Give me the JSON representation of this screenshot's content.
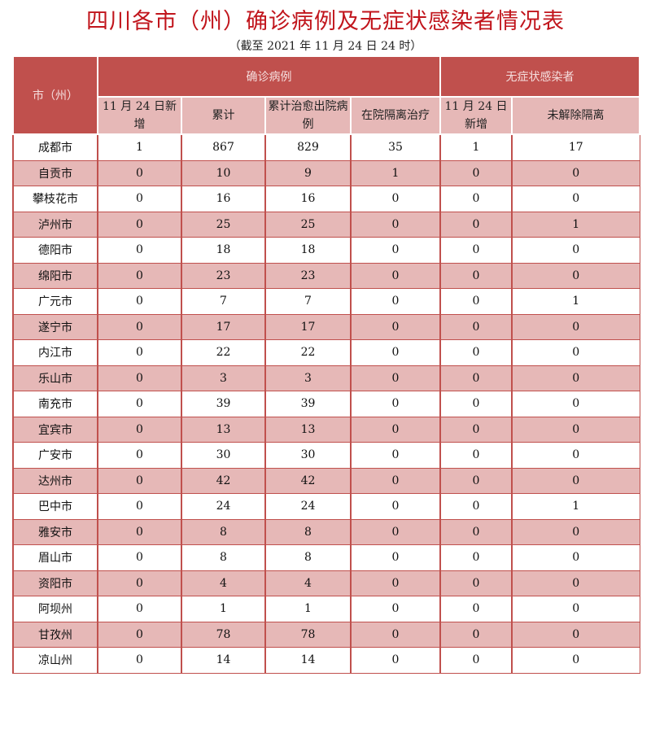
{
  "title": "四川各市（州）确诊病例及无症状感染者情况表",
  "subtitle": "（截至 2021 年 11 月 24 日 24 时）",
  "header": {
    "city": "市（州）",
    "confirmed_group": "确诊病例",
    "asymptomatic_group": "无症状感染者",
    "columns": [
      "11 月 24 日新增",
      "累计",
      "累计治愈出院病例",
      "在院隔离治疗",
      "11 月 24 日新增",
      "未解除隔离"
    ]
  },
  "rows": [
    [
      "成都市",
      "1",
      "867",
      "829",
      "35",
      "1",
      "17"
    ],
    [
      "自贡市",
      "0",
      "10",
      "9",
      "1",
      "0",
      "0"
    ],
    [
      "攀枝花市",
      "0",
      "16",
      "16",
      "0",
      "0",
      "0"
    ],
    [
      "泸州市",
      "0",
      "25",
      "25",
      "0",
      "0",
      "1"
    ],
    [
      "德阳市",
      "0",
      "18",
      "18",
      "0",
      "0",
      "0"
    ],
    [
      "绵阳市",
      "0",
      "23",
      "23",
      "0",
      "0",
      "0"
    ],
    [
      "广元市",
      "0",
      "7",
      "7",
      "0",
      "0",
      "1"
    ],
    [
      "遂宁市",
      "0",
      "17",
      "17",
      "0",
      "0",
      "0"
    ],
    [
      "内江市",
      "0",
      "22",
      "22",
      "0",
      "0",
      "0"
    ],
    [
      "乐山市",
      "0",
      "3",
      "3",
      "0",
      "0",
      "0"
    ],
    [
      "南充市",
      "0",
      "39",
      "39",
      "0",
      "0",
      "0"
    ],
    [
      "宜宾市",
      "0",
      "13",
      "13",
      "0",
      "0",
      "0"
    ],
    [
      "广安市",
      "0",
      "30",
      "30",
      "0",
      "0",
      "0"
    ],
    [
      "达州市",
      "0",
      "42",
      "42",
      "0",
      "0",
      "0"
    ],
    [
      "巴中市",
      "0",
      "24",
      "24",
      "0",
      "0",
      "1"
    ],
    [
      "雅安市",
      "0",
      "8",
      "8",
      "0",
      "0",
      "0"
    ],
    [
      "眉山市",
      "0",
      "8",
      "8",
      "0",
      "0",
      "0"
    ],
    [
      "资阳市",
      "0",
      "4",
      "4",
      "0",
      "0",
      "0"
    ],
    [
      "阿坝州",
      "0",
      "1",
      "1",
      "0",
      "0",
      "0"
    ],
    [
      "甘孜州",
      "0",
      "78",
      "78",
      "0",
      "0",
      "0"
    ],
    [
      "凉山州",
      "0",
      "14",
      "14",
      "0",
      "0",
      "0"
    ]
  ]
}
